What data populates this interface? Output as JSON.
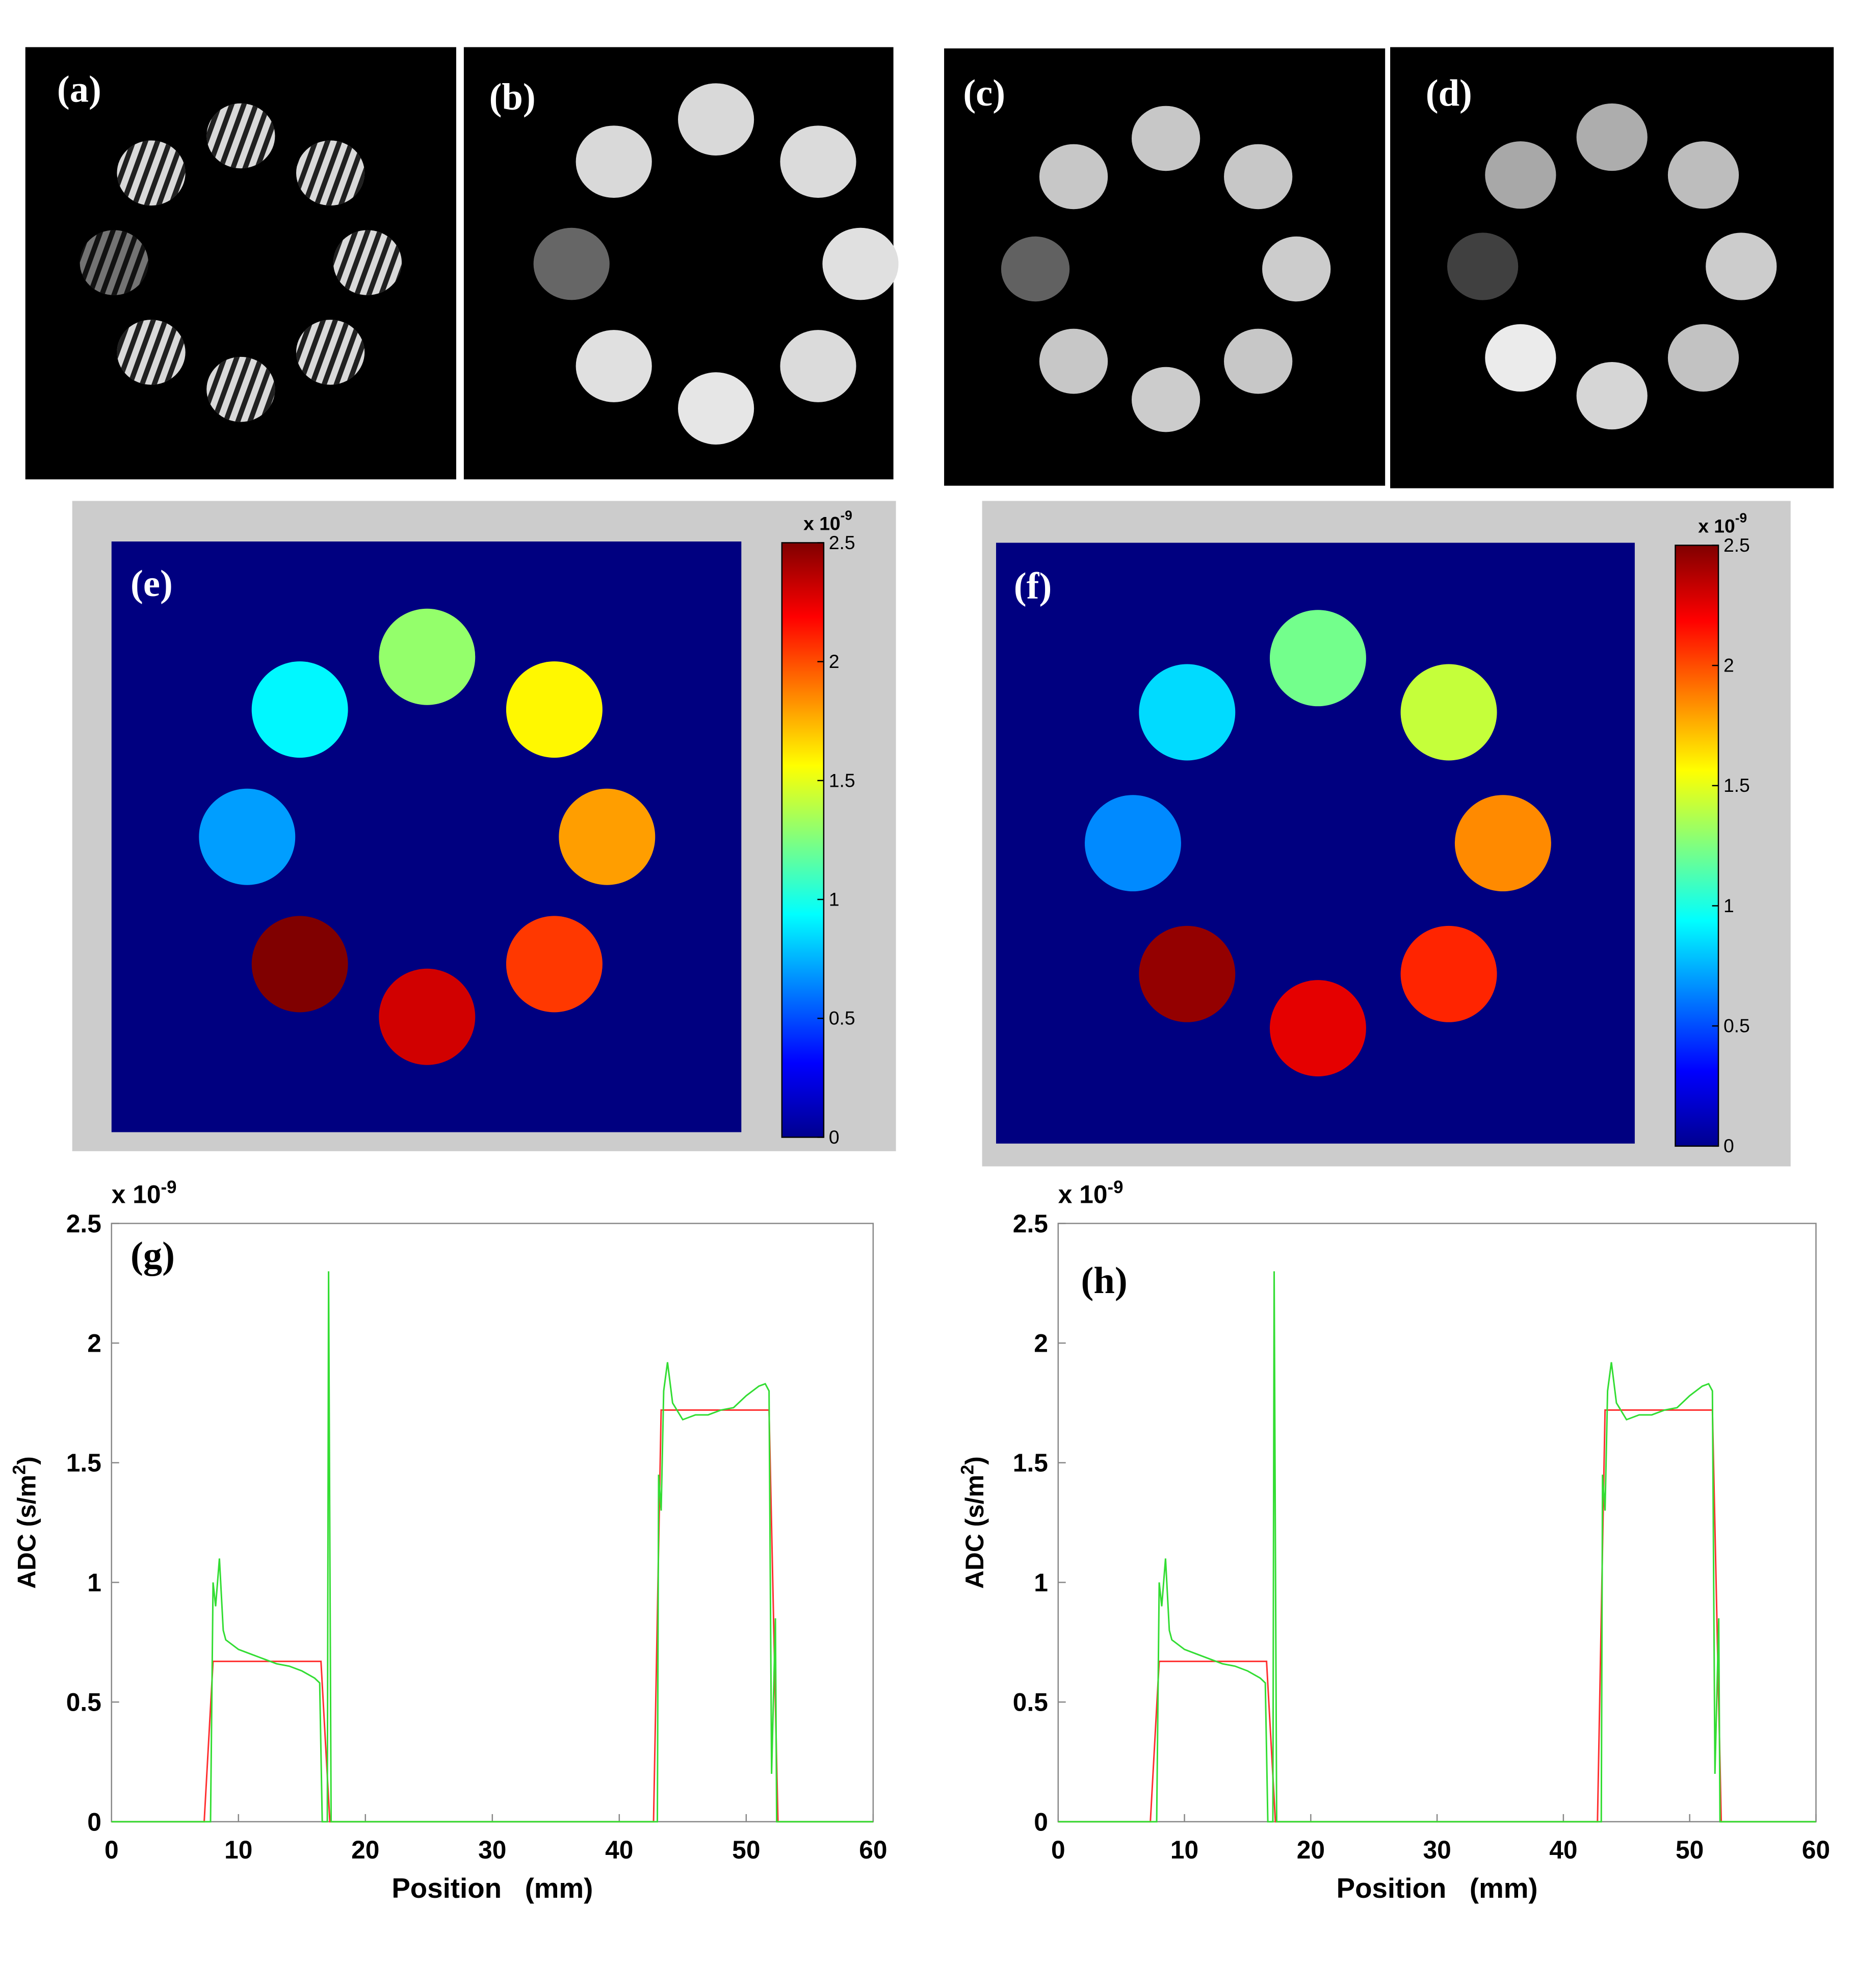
{
  "chart_data": [
    {
      "type": "image",
      "label": "(a)",
      "striped": true,
      "values": [
        0.85,
        0.85,
        0.85,
        0.85,
        0.85,
        0.85,
        0.45,
        0.85
      ]
    },
    {
      "type": "image",
      "label": "(b)",
      "values": [
        0.85,
        0.86,
        0.88,
        0.86,
        0.9,
        0.88,
        0.4,
        0.85
      ]
    },
    {
      "type": "image",
      "label": "(c)",
      "values": [
        0.78,
        0.78,
        0.8,
        0.78,
        0.8,
        0.78,
        0.38,
        0.78
      ]
    },
    {
      "type": "image",
      "label": "(d)",
      "values": [
        0.68,
        0.74,
        0.8,
        0.76,
        0.84,
        0.92,
        0.25,
        0.66
      ]
    },
    {
      "type": "disk-map",
      "label": "(e)",
      "values": [
        1.3,
        1.58,
        1.8,
        2.05,
        2.3,
        2.5,
        0.7,
        0.92
      ],
      "clim": [
        0,
        2.5
      ],
      "colorbar_ticks": [
        0,
        0.5,
        1,
        1.5,
        2,
        2.5
      ],
      "multiplier": [
        "x 10",
        "-9"
      ]
    },
    {
      "type": "disk-map",
      "label": "(f)",
      "values": [
        1.22,
        1.42,
        1.85,
        2.1,
        2.25,
        2.45,
        0.65,
        0.85
      ],
      "clim": [
        0,
        2.5
      ],
      "colorbar_ticks": [
        0,
        0.5,
        1,
        1.5,
        2,
        2.5
      ],
      "multiplier": [
        "x 10",
        "-9"
      ]
    },
    {
      "type": "line",
      "label": "(g)",
      "xlim": [
        0,
        60
      ],
      "xticks": [
        0,
        10,
        20,
        30,
        40,
        50,
        60
      ],
      "ylim": [
        0,
        2.5
      ],
      "yticks": [
        0,
        0.5,
        1,
        1.5,
        2,
        2.5
      ],
      "multiplier": [
        "x 10",
        "-9"
      ],
      "xlabel": "Position   (mm)",
      "ylabel": [
        "ADC (s/m",
        "2",
        ")"
      ],
      "series": [
        {
          "color": "#ff3030",
          "x": [
            0,
            7.3,
            8.0,
            16.5,
            17.2,
            42.7,
            43.3,
            51.8,
            52.5,
            60
          ],
          "values": [
            0,
            0,
            0.67,
            0.67,
            0,
            0,
            1.72,
            1.72,
            0,
            0
          ]
        },
        {
          "color": "#33dd33",
          "x": [
            0,
            7.8,
            8.0,
            8.2,
            8.5,
            8.8,
            9,
            10,
            11,
            12,
            13,
            14,
            15,
            16,
            16.4,
            16.6,
            17.0,
            17.1,
            17.3,
            43.0,
            43.1,
            43.3,
            43.5,
            43.8,
            44.2,
            45,
            46,
            47,
            48,
            49,
            50,
            51,
            51.5,
            51.8,
            52.0,
            52.3,
            52.4,
            60
          ],
          "values": [
            0,
            0,
            1.0,
            0.9,
            1.1,
            0.8,
            0.76,
            0.72,
            0.7,
            0.68,
            0.66,
            0.65,
            0.63,
            0.6,
            0.58,
            0,
            0,
            2.3,
            0,
            0,
            1.45,
            1.3,
            1.8,
            1.92,
            1.75,
            1.68,
            1.7,
            1.7,
            1.72,
            1.73,
            1.78,
            1.82,
            1.83,
            1.8,
            0.2,
            0.85,
            0,
            0
          ]
        }
      ]
    },
    {
      "type": "line",
      "label": "(h)",
      "xlim": [
        0,
        60
      ],
      "xticks": [
        0,
        10,
        20,
        30,
        40,
        50,
        60
      ],
      "ylim": [
        0,
        2.5
      ],
      "yticks": [
        0,
        0.5,
        1,
        1.5,
        2,
        2.5
      ],
      "multiplier": [
        "x 10",
        "-9"
      ],
      "xlabel": "Position   (mm)",
      "ylabel": [
        "ADC (s/m",
        "2",
        ")"
      ],
      "series": [
        {
          "color": "#ff3030",
          "x": [
            0,
            7.3,
            8.0,
            16.5,
            17.2,
            42.7,
            43.3,
            51.8,
            52.5,
            60
          ],
          "values": [
            0,
            0,
            0.67,
            0.67,
            0,
            0,
            1.72,
            1.72,
            0,
            0
          ]
        },
        {
          "color": "#33dd33",
          "x": [
            0,
            7.8,
            8.0,
            8.2,
            8.5,
            8.8,
            9,
            10,
            11,
            12,
            13,
            14,
            15,
            16,
            16.4,
            16.6,
            17.0,
            17.1,
            17.3,
            43.0,
            43.1,
            43.3,
            43.5,
            43.8,
            44.2,
            45,
            46,
            47,
            48,
            49,
            50,
            51,
            51.5,
            51.8,
            52.0,
            52.3,
            52.4,
            60
          ],
          "values": [
            0,
            0,
            1.0,
            0.9,
            1.1,
            0.8,
            0.76,
            0.72,
            0.7,
            0.68,
            0.66,
            0.65,
            0.63,
            0.6,
            0.58,
            0,
            0,
            2.3,
            0,
            0,
            1.45,
            1.3,
            1.8,
            1.92,
            1.75,
            1.68,
            1.7,
            1.7,
            1.72,
            1.73,
            1.78,
            1.82,
            1.83,
            1.8,
            0.2,
            0.85,
            0,
            0
          ]
        }
      ]
    }
  ]
}
